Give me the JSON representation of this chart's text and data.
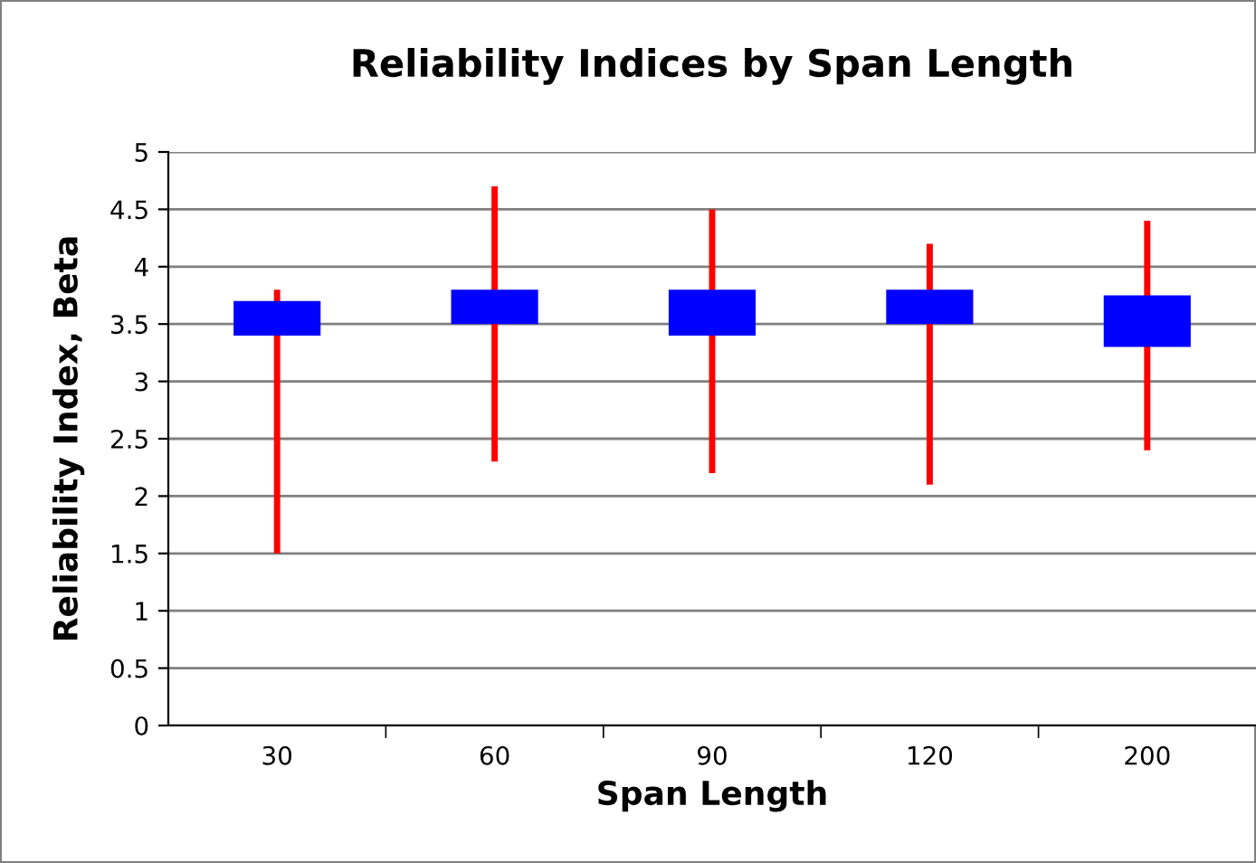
{
  "chart_data": {
    "type": "candlestick",
    "title": "Reliability Indices by Span Length",
    "xlabel": "Span Length",
    "ylabel": "Reliability Index, Beta",
    "categories": [
      "30",
      "60",
      "90",
      "120",
      "200"
    ],
    "ohlc": [
      [
        3.4,
        3.8,
        1.5,
        3.7
      ],
      [
        3.5,
        4.7,
        2.3,
        3.8
      ],
      [
        3.4,
        4.5,
        2.2,
        3.8
      ],
      [
        3.5,
        4.2,
        2.1,
        3.8
      ],
      [
        3.3,
        4.4,
        2.4,
        3.75
      ]
    ],
    "colors": [
      "#0000ff",
      "#0000ff",
      "#0000ff",
      "#0000ff",
      "#0000ff"
    ],
    "ylim": [
      0,
      5
    ],
    "yticks": [
      0,
      0.5,
      1,
      1.5,
      2,
      2.5,
      3,
      3.5,
      4,
      4.5,
      5
    ],
    "grid": "y",
    "legend": false
  }
}
